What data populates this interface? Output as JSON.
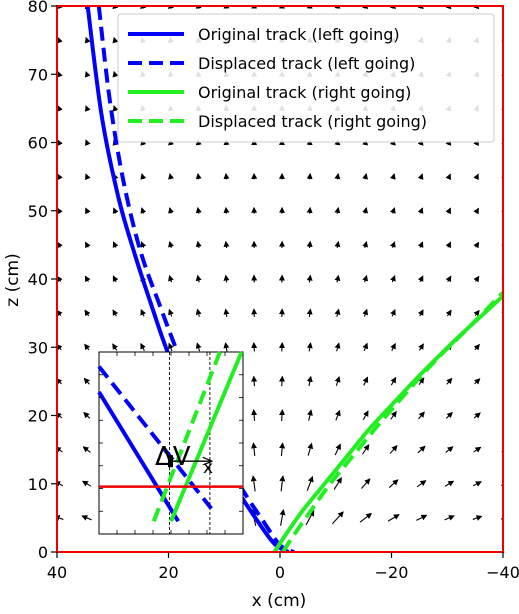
{
  "chart_data": {
    "type": "line",
    "xlabel": "x (cm)",
    "ylabel": "z (cm)",
    "xlim": [
      40,
      -40
    ],
    "ylim": [
      0,
      80
    ],
    "x_ticks": [
      40,
      20,
      0,
      -20,
      -40
    ],
    "y_ticks": [
      0,
      10,
      20,
      30,
      40,
      50,
      60,
      70,
      80
    ],
    "legend_position": "top-right",
    "series": [
      {
        "name": "Original track (left going)",
        "color": "#0000ff",
        "dash": "solid",
        "x": [
          34.5,
          32,
          29,
          26,
          23,
          20,
          16,
          12,
          8,
          4,
          1,
          -1.5
        ],
        "y": [
          80,
          64,
          52,
          43.5,
          36,
          29,
          22,
          15.5,
          9.5,
          4.5,
          1.2,
          0
        ]
      },
      {
        "name": "Displaced track (left going)",
        "color": "#0000ff",
        "dash": "dashed",
        "x": [
          32.5,
          30.5,
          28,
          25,
          21.5,
          18.5,
          15,
          11,
          7,
          3,
          0,
          -2.5
        ],
        "y": [
          80,
          66,
          54,
          44,
          36,
          29.5,
          22.5,
          15.5,
          9.5,
          4.5,
          1,
          0
        ]
      },
      {
        "name": "Original track (right going)",
        "color": "#22ee22",
        "dash": "solid",
        "x": [
          1,
          -1,
          -4,
          -8,
          -12,
          -16,
          -20,
          -24,
          -28,
          -32,
          -36,
          -40
        ],
        "y": [
          0,
          2.5,
          6,
          10,
          14,
          18,
          21.5,
          25,
          28.3,
          31.5,
          34.5,
          37.5
        ]
      },
      {
        "name": "Displaced track (right going)",
        "color": "#22ee22",
        "dash": "dashed",
        "x": [
          -0.5,
          -2.5,
          -5.5,
          -9,
          -13,
          -17,
          -21,
          -25,
          -29,
          -33,
          -37,
          -40
        ],
        "y": [
          0,
          2.5,
          6,
          10,
          14,
          18,
          21.8,
          25.5,
          29,
          32.2,
          35.5,
          38
        ]
      }
    ],
    "inset": {
      "label": "ΔV",
      "label_subscript": "x",
      "blue_solid": [
        [
          0,
          0.22
        ],
        [
          0.55,
          0.93
        ]
      ],
      "blue_dashed": [
        [
          0,
          0.08
        ],
        [
          0.78,
          0.86
        ]
      ],
      "green_solid": [
        [
          0.5,
          0.93
        ],
        [
          0.99,
          0.0
        ]
      ],
      "green_dashed": [
        [
          0.38,
          0.93
        ],
        [
          0.84,
          0.0
        ]
      ],
      "red_line_y": 0.74,
      "vlines_x": [
        0.49,
        0.77
      ],
      "arrow": [
        [
          0.5,
          0.6
        ],
        [
          0.78,
          0.6
        ]
      ]
    },
    "frame_color": "#ee0000"
  }
}
